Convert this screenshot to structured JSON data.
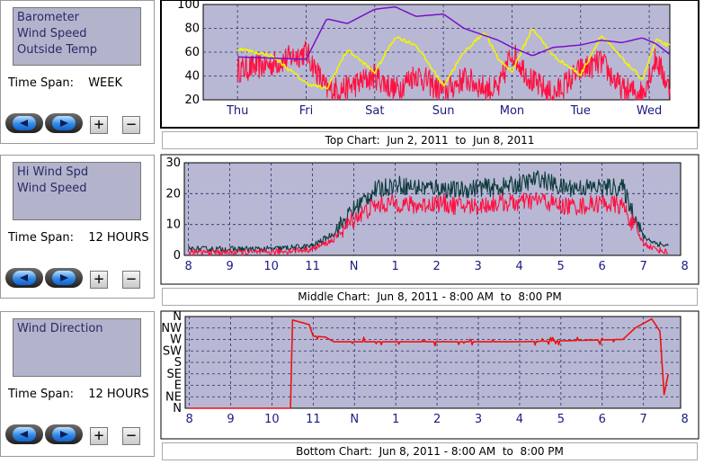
{
  "panels": [
    {
      "series_labels": [
        "Barometer",
        "Wind Speed",
        "Outside Temp"
      ],
      "time_span_label": "Time Span:",
      "time_span_value": "WEEK"
    },
    {
      "series_labels": [
        "Hi Wind Spd",
        "Wind Speed"
      ],
      "time_span_label": "Time Span:",
      "time_span_value": "12 HOURS"
    },
    {
      "series_labels": [
        "Wind Direction"
      ],
      "time_span_label": "Time Span:",
      "time_span_value": "12 HOURS"
    }
  ],
  "buttons": {
    "plus": "+",
    "minus": "−"
  },
  "captions": {
    "top": "Top Chart:  Jun 2, 2011  to  Jun 8, 2011",
    "middle": "Middle Chart:  Jun 8, 2011 - 8:00 AM  to  8:00 PM",
    "bottom": "Bottom Chart:  Jun 8, 2011 - 8:00 AM  to  8:00 PM"
  },
  "colors": {
    "plot_bg": "#b8b8d4",
    "grid": "#2a2a6e",
    "barometer": "#7a10c8",
    "temp": "#f4f400",
    "wind": "#ff1040",
    "hiwind": "#0d3b3b",
    "direction": "#ee1111"
  },
  "chart_data": [
    {
      "type": "line",
      "x_categories": [
        "Thu",
        "Fri",
        "Sat",
        "Sun",
        "Mon",
        "Tue",
        "Wed"
      ],
      "ylim": [
        20,
        100
      ],
      "y_ticks": [
        20,
        40,
        60,
        80,
        100
      ],
      "x": [
        0,
        0.5,
        1.0,
        1.3,
        1.6,
        2.0,
        2.3,
        2.6,
        3.0,
        3.3,
        3.6,
        3.8,
        4.0,
        4.3,
        4.6,
        5.0,
        5.3,
        5.6,
        5.9,
        6.1,
        6.3
      ],
      "series": [
        {
          "name": "Barometer",
          "values": [
            56,
            55,
            54,
            88,
            84,
            96,
            98,
            90,
            92,
            80,
            74,
            70,
            64,
            57,
            64,
            66,
            70,
            68,
            72,
            67,
            58
          ]
        },
        {
          "name": "Outside Temp",
          "values": [
            63,
            57,
            34,
            29,
            62,
            43,
            73,
            66,
            32,
            60,
            77,
            54,
            44,
            80,
            57,
            41,
            74,
            55,
            37,
            70,
            65
          ]
        },
        {
          "name": "Wind Speed",
          "values": [
            45,
            50,
            60,
            28,
            30,
            40,
            28,
            42,
            26,
            38,
            30,
            28,
            60,
            35,
            24,
            45,
            52,
            28,
            26,
            55,
            28
          ]
        }
      ]
    },
    {
      "type": "line",
      "x_categories": [
        "8",
        "9",
        "10",
        "11",
        "N",
        "1",
        "2",
        "3",
        "4",
        "5",
        "6",
        "7",
        "8"
      ],
      "ylim": [
        0,
        30
      ],
      "y_ticks": [
        0,
        10,
        20,
        30
      ],
      "x": [
        0,
        1,
        2,
        3,
        3.5,
        4,
        4.5,
        5,
        5.5,
        6,
        6.5,
        7,
        7.5,
        8,
        8.5,
        9,
        9.5,
        10,
        10.5,
        11,
        11.3,
        11.6
      ],
      "series": [
        {
          "name": "Hi Wind Spd",
          "values": [
            2,
            2,
            2,
            3,
            7,
            15,
            21,
            23,
            22,
            22,
            21,
            22,
            22,
            23,
            25,
            22,
            22,
            22,
            22,
            6,
            4,
            3
          ]
        },
        {
          "name": "Wind Speed",
          "values": [
            1,
            1,
            1,
            2,
            5,
            12,
            16,
            17,
            16,
            17,
            16,
            16,
            17,
            17,
            18,
            16,
            16,
            17,
            16,
            4,
            2,
            1
          ]
        }
      ]
    },
    {
      "type": "line",
      "x_categories": [
        "8",
        "9",
        "10",
        "11",
        "N",
        "1",
        "2",
        "3",
        "4",
        "5",
        "6",
        "7",
        "8"
      ],
      "y_categories": [
        "N",
        "NE",
        "E",
        "SE",
        "S",
        "SW",
        "W",
        "NW",
        "N"
      ],
      "series": [
        {
          "name": "Wind Direction",
          "points": [
            [
              0,
              0
            ],
            [
              2.45,
              0
            ],
            [
              2.5,
              7.7
            ],
            [
              2.9,
              7.3
            ],
            [
              3.0,
              6.3
            ],
            [
              3.3,
              6.2
            ],
            [
              3.5,
              5.8
            ],
            [
              8.0,
              5.8
            ],
            [
              10.5,
              6.0
            ],
            [
              10.8,
              7.0
            ],
            [
              11.2,
              7.8
            ],
            [
              11.4,
              6.7
            ],
            [
              11.5,
              1.2
            ],
            [
              11.6,
              3.0
            ]
          ]
        }
      ]
    }
  ]
}
